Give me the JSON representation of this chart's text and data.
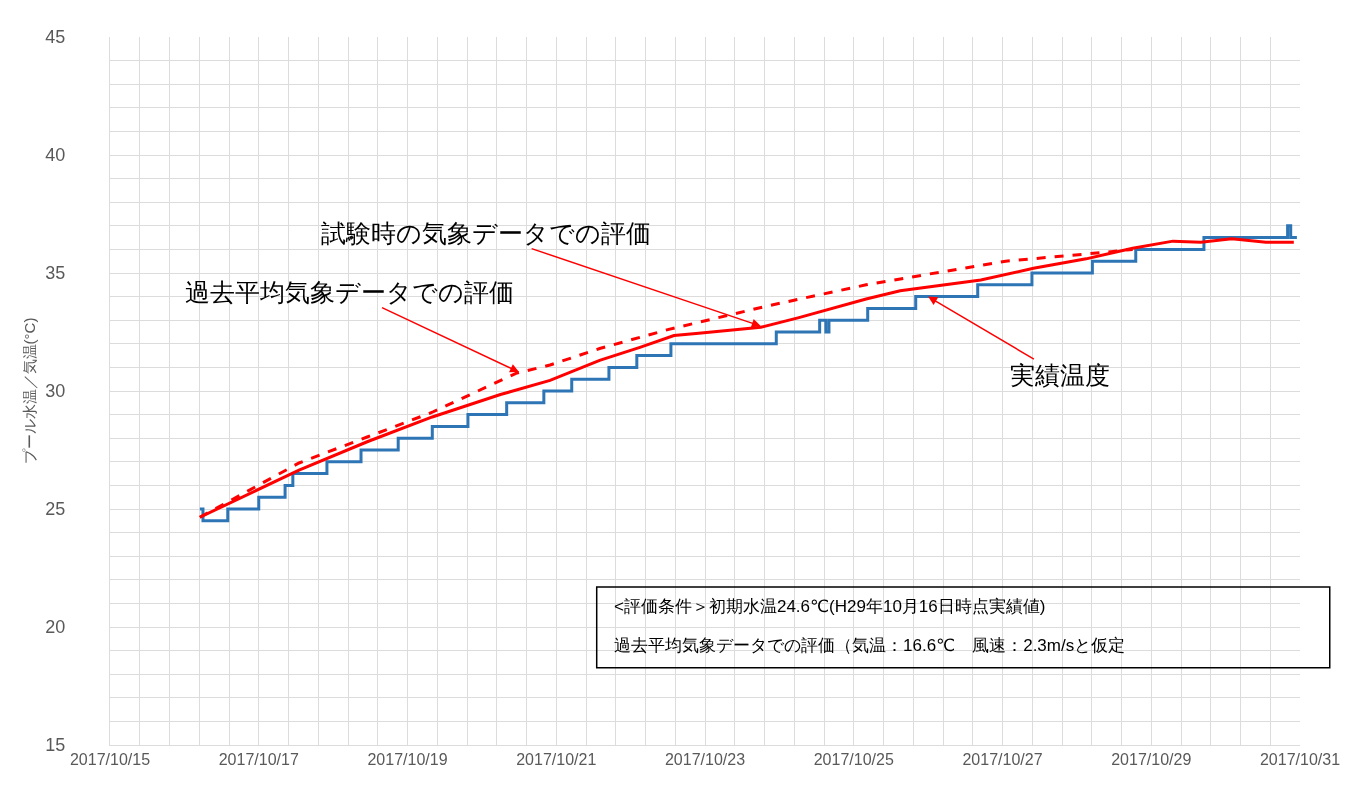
{
  "chart_data": {
    "type": "line",
    "ylabel": "プール水温／気温(°C)",
    "ylim": [
      15,
      45
    ],
    "yticks": [
      15,
      {
        "value": 16,
        "label": null
      },
      {
        "value": 17,
        "label": null
      },
      {
        "value": 18,
        "label": null
      },
      {
        "value": 19,
        "label": null
      },
      20,
      {
        "value": 21,
        "label": null
      },
      {
        "value": 22,
        "label": null
      },
      {
        "value": 23,
        "label": null
      },
      {
        "value": 24,
        "label": null
      },
      25,
      {
        "value": 26,
        "label": null
      },
      {
        "value": 27,
        "label": null
      },
      {
        "value": 28,
        "label": null
      },
      {
        "value": 29,
        "label": null
      },
      30,
      {
        "value": 31,
        "label": null
      },
      {
        "value": 32,
        "label": null
      },
      {
        "value": 33,
        "label": null
      },
      {
        "value": 34,
        "label": null
      },
      35,
      {
        "value": 36,
        "label": null
      },
      {
        "value": 37,
        "label": null
      },
      {
        "value": 38,
        "label": null
      },
      {
        "value": 39,
        "label": null
      },
      40,
      {
        "value": 41,
        "label": null
      },
      {
        "value": 42,
        "label": null
      },
      {
        "value": 43,
        "label": null
      },
      {
        "value": 44,
        "label": null
      },
      45
    ],
    "xlim": [
      "2017-10-15",
      "2017-10-31"
    ],
    "xticks": [
      {
        "value": "2017-10-15",
        "label": "2017/10/15"
      },
      {
        "value": "2017-10-15T09:36",
        "label": null
      },
      {
        "value": "2017-10-15T19:12",
        "label": null
      },
      {
        "value": "2017-10-16T04:48",
        "label": null
      },
      {
        "value": "2017-10-16T14:24",
        "label": null
      },
      {
        "value": "2017-10-17",
        "label": "2017/10/17"
      },
      {
        "value": "2017-10-17T09:36",
        "label": null
      },
      {
        "value": "2017-10-17T19:12",
        "label": null
      },
      {
        "value": "2017-10-18T04:48",
        "label": null
      },
      {
        "value": "2017-10-18T14:24",
        "label": null
      },
      {
        "value": "2017-10-19",
        "label": "2017/10/19"
      },
      {
        "value": "2017-10-19T09:36",
        "label": null
      },
      {
        "value": "2017-10-19T19:12",
        "label": null
      },
      {
        "value": "2017-10-20T04:48",
        "label": null
      },
      {
        "value": "2017-10-20T14:24",
        "label": null
      },
      {
        "value": "2017-10-21",
        "label": "2017/10/21"
      },
      {
        "value": "2017-10-21T09:36",
        "label": null
      },
      {
        "value": "2017-10-21T19:12",
        "label": null
      },
      {
        "value": "2017-10-22T04:48",
        "label": null
      },
      {
        "value": "2017-10-22T14:24",
        "label": null
      },
      {
        "value": "2017-10-23",
        "label": "2017/10/23"
      },
      {
        "value": "2017-10-23T09:36",
        "label": null
      },
      {
        "value": "2017-10-23T19:12",
        "label": null
      },
      {
        "value": "2017-10-24T04:48",
        "label": null
      },
      {
        "value": "2017-10-24T14:24",
        "label": null
      },
      {
        "value": "2017-10-25",
        "label": "2017/10/25"
      },
      {
        "value": "2017-10-25T09:36",
        "label": null
      },
      {
        "value": "2017-10-25T19:12",
        "label": null
      },
      {
        "value": "2017-10-26T04:48",
        "label": null
      },
      {
        "value": "2017-10-26T14:24",
        "label": null
      },
      {
        "value": "2017-10-27",
        "label": "2017/10/27"
      },
      {
        "value": "2017-10-27T09:36",
        "label": null
      },
      {
        "value": "2017-10-27T19:12",
        "label": null
      },
      {
        "value": "2017-10-28T04:48",
        "label": null
      },
      {
        "value": "2017-10-28T14:24",
        "label": null
      },
      {
        "value": "2017-10-29",
        "label": "2017/10/29"
      },
      {
        "value": "2017-10-29T09:36",
        "label": null
      },
      {
        "value": "2017-10-29T19:12",
        "label": null
      },
      {
        "value": "2017-10-30T04:48",
        "label": null
      },
      {
        "value": "2017-10-30T14:24",
        "label": null
      },
      {
        "value": "2017-10-31",
        "label": "2017/10/31"
      }
    ],
    "grid": true,
    "marker": "none",
    "series": [
      {
        "type": "step",
        "color": "#2e75b6",
        "line_style": "solid",
        "x": [
          "2017-10-16T05:00",
          "2017-10-16T06:00",
          "2017-10-16T14:00",
          "2017-10-17T00:00",
          "2017-10-17T08:30",
          "2017-10-17T11:00",
          "2017-10-17T22:00",
          "2017-10-18T09:00",
          "2017-10-18T21:00",
          "2017-10-19T08:00",
          "2017-10-19T19:30",
          "2017-10-20T08:00",
          "2017-10-20T20:00",
          "2017-10-21T05:00",
          "2017-10-21T17:00",
          "2017-10-22T02:00",
          "2017-10-22T13:00",
          "2017-10-23T23:00",
          "2017-10-24T13:00",
          "2017-10-24T15:00",
          "2017-10-24T16:00",
          "2017-10-25T04:30",
          "2017-10-25T20:00",
          "2017-10-26T16:00",
          "2017-10-27T09:30",
          "2017-10-28T05:00",
          "2017-10-28T19:00",
          "2017-10-29T17:00",
          "2017-10-30T20:00",
          "2017-10-30T21:00",
          "2017-10-30T23:00"
        ],
        "values": [
          25.0,
          24.5,
          25.0,
          25.5,
          26.0,
          26.5,
          27.0,
          27.5,
          28.0,
          28.5,
          29.0,
          29.5,
          30.0,
          30.5,
          31.0,
          31.5,
          32.0,
          32.5,
          33.0,
          32.5,
          33.0,
          33.5,
          34.0,
          34.5,
          35.0,
          35.5,
          36.0,
          36.5,
          37.0,
          36.5,
          36.5
        ]
      },
      {
        "type": "line",
        "color": "#ff0000",
        "line_style": "dashed",
        "x": [
          "2017-10-16T05:00",
          "2017-10-17T13:00",
          "2017-10-18T11:00",
          "2017-10-19T08:00",
          "2017-10-20T11:00",
          "2017-10-20T22:00",
          "2017-10-21T14:00",
          "2017-10-22T12:00",
          "2017-10-23T20:00",
          "2017-10-25T04:00",
          "2017-10-26T00:00",
          "2017-10-27T01:00",
          "2017-10-28T11:00",
          "2017-10-28T18:00"
        ],
        "values": [
          24.65,
          26.95,
          28.05,
          29.1,
          30.75,
          31.1,
          31.8,
          32.6,
          33.6,
          34.5,
          34.95,
          35.5,
          35.9,
          36.0
        ]
      },
      {
        "color": "#ff0000",
        "line_style": "solid",
        "x": [
          "2017-10-16T05:00",
          "2017-10-17T13:00",
          "2017-10-18T11:00",
          "2017-10-19T08:00",
          "2017-10-20T06:00",
          "2017-10-20T22:00",
          "2017-10-21T14:00",
          "2017-10-22T03:00",
          "2017-10-22T14:00",
          "2017-10-22T22:00",
          "2017-10-23T18:00",
          "2017-10-24T06:00",
          "2017-10-25T04:00",
          "2017-10-25T15:00",
          "2017-10-26T17:00",
          "2017-10-27T10:00",
          "2017-10-28T03:00",
          "2017-10-28T18:00",
          "2017-10-29T07:00",
          "2017-10-29T16:00",
          "2017-10-30T02:00",
          "2017-10-30T13:00",
          "2017-10-30T22:00"
        ],
        "values": [
          24.65,
          26.65,
          27.85,
          28.9,
          29.85,
          30.45,
          31.3,
          31.85,
          32.35,
          32.45,
          32.7,
          33.1,
          33.9,
          34.25,
          34.7,
          35.2,
          35.6,
          36.05,
          36.35,
          36.3,
          36.45,
          36.3,
          36.3
        ]
      }
    ],
    "annotations": [
      {
        "text": "試験時の気象データでの評価",
        "x": "2017-10-23T18:00",
        "y": 32.75
      },
      {
        "text": "過去平均気象データでの評価",
        "x": "2017-10-20T12:00",
        "y": 30.8
      },
      {
        "text": "実績温度",
        "x": "2017-10-26T00:00",
        "y": 34.0
      },
      "<評価条件＞初期水温24.6℃(H29年10月16日時点実績値)",
      "過去平均気象データでの評価（気温：16.6℃　風速：2.3m/sと仮定"
    ]
  }
}
